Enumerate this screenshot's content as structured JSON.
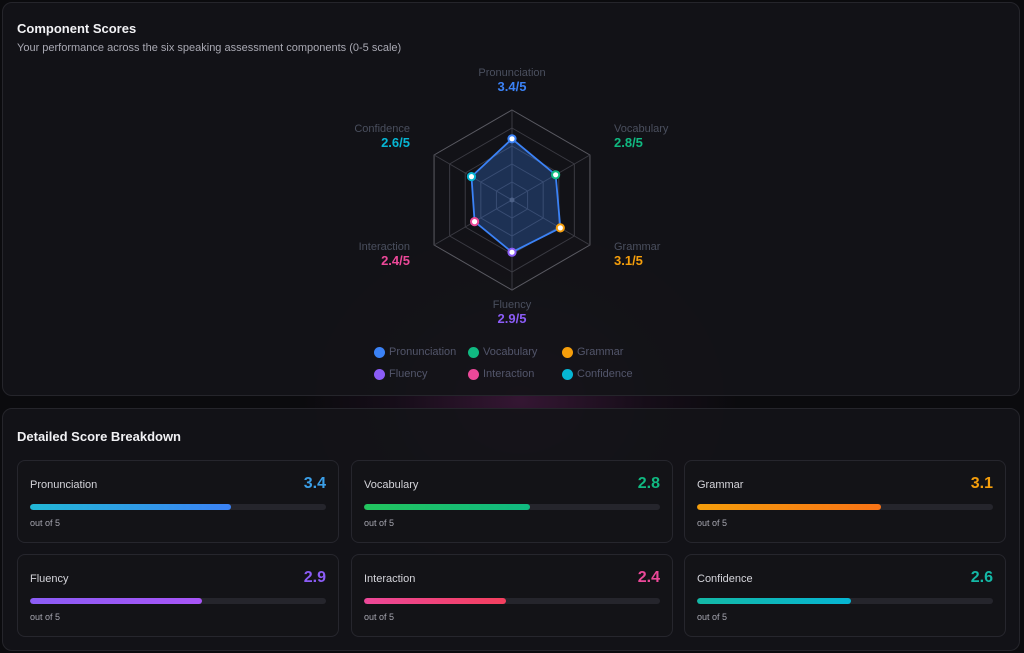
{
  "colors": {
    "pronunciation": "#3b82f6",
    "vocabulary": "#10b981",
    "grammar": "#f59e0b",
    "fluency": "#8b5cf6",
    "interaction": "#ec4899",
    "confidence": "#06b6d4"
  },
  "component_scores": {
    "title": "Component Scores",
    "subtitle": "Your performance across the six speaking assessment components (0-5 scale)"
  },
  "chart_data": {
    "type": "radar",
    "scale_max": 5,
    "grid_levels": 5,
    "axes": [
      {
        "key": "pronunciation",
        "label": "Pronunciation",
        "value": 3.4,
        "display": "3.4/5",
        "color": "#3b82f6"
      },
      {
        "key": "vocabulary",
        "label": "Vocabulary",
        "value": 2.8,
        "display": "2.8/5",
        "color": "#10b981"
      },
      {
        "key": "grammar",
        "label": "Grammar",
        "value": 3.1,
        "display": "3.1/5",
        "color": "#f59e0b"
      },
      {
        "key": "fluency",
        "label": "Fluency",
        "value": 2.9,
        "display": "2.9/5",
        "color": "#8b5cf6"
      },
      {
        "key": "interaction",
        "label": "Interaction",
        "value": 2.4,
        "display": "2.4/5",
        "color": "#ec4899"
      },
      {
        "key": "confidence",
        "label": "Confidence",
        "value": 2.6,
        "display": "2.6/5",
        "color": "#06b6d4"
      }
    ],
    "series_color": "#3b82f6",
    "legend_position": "bottom"
  },
  "legend": [
    {
      "label": "Pronunciation",
      "color": "#3b82f6"
    },
    {
      "label": "Vocabulary",
      "color": "#10b981"
    },
    {
      "label": "Grammar",
      "color": "#f59e0b"
    },
    {
      "label": "Fluency",
      "color": "#8b5cf6"
    },
    {
      "label": "Interaction",
      "color": "#ec4899"
    },
    {
      "label": "Confidence",
      "color": "#06b6d4"
    }
  ],
  "breakdown": {
    "title": "Detailed Score Breakdown",
    "unit_text": "out of 5",
    "cards": [
      {
        "name": "Pronunciation",
        "value": "3.4",
        "fraction": 0.68,
        "value_color": "#3b9fe8",
        "gradient": [
          "#22b8d6",
          "#3b82f6"
        ]
      },
      {
        "name": "Vocabulary",
        "value": "2.8",
        "fraction": 0.56,
        "value_color": "#10b981",
        "gradient": [
          "#22c55e",
          "#10b981"
        ]
      },
      {
        "name": "Grammar",
        "value": "3.1",
        "fraction": 0.62,
        "value_color": "#f59e0b",
        "gradient": [
          "#f59e0b",
          "#f97316"
        ]
      },
      {
        "name": "Fluency",
        "value": "2.9",
        "fraction": 0.58,
        "value_color": "#8b5cf6",
        "gradient": [
          "#8b5cf6",
          "#a855f7"
        ]
      },
      {
        "name": "Interaction",
        "value": "2.4",
        "fraction": 0.48,
        "value_color": "#ec4899",
        "gradient": [
          "#ec4899",
          "#f43f5e"
        ]
      },
      {
        "name": "Confidence",
        "value": "2.6",
        "fraction": 0.52,
        "value_color": "#14b8a6",
        "gradient": [
          "#14b8a6",
          "#06b6d4"
        ]
      }
    ]
  }
}
